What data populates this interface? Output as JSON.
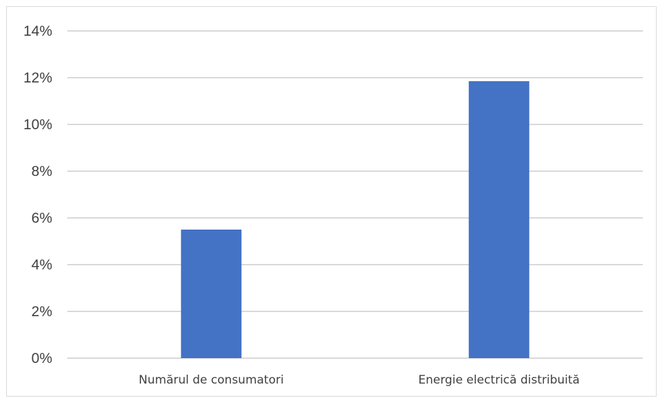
{
  "chart_data": {
    "type": "bar",
    "title": "",
    "xlabel": "",
    "ylabel": "",
    "categories": [
      "Numărul de consumatori",
      "Energie  electrică distribuită"
    ],
    "series": [
      {
        "values": [
          5.5,
          11.85
        ]
      }
    ],
    "ylim": [
      0,
      14
    ],
    "ytick_values": [
      0,
      2,
      4,
      6,
      8,
      10,
      12,
      14
    ],
    "ytick_labels": [
      "0%",
      "2%",
      "4%",
      "6%",
      "8%",
      "10%",
      "12%",
      "14%"
    ],
    "grid": true,
    "legend": "none",
    "bar_color": "#4472c4",
    "grid_color": "#d9d9d9"
  }
}
